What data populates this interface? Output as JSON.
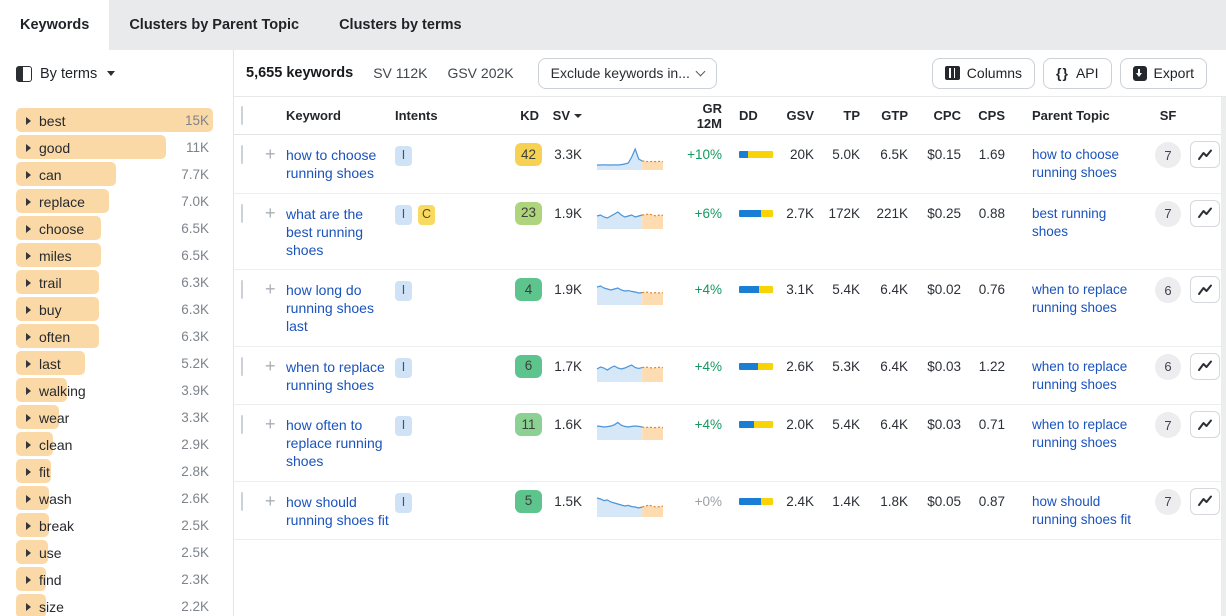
{
  "tabs": [
    {
      "label": "Keywords",
      "active": true
    },
    {
      "label": "Clusters by Parent Topic",
      "active": false
    },
    {
      "label": "Clusters by terms",
      "active": false
    }
  ],
  "sidebar": {
    "view_selector": "By terms",
    "terms": [
      {
        "term": "best",
        "count": "15K",
        "bar_pct": 100
      },
      {
        "term": "good",
        "count": "11K",
        "bar_pct": 76
      },
      {
        "term": "can",
        "count": "7.7K",
        "bar_pct": 51
      },
      {
        "term": "replace",
        "count": "7.0K",
        "bar_pct": 47
      },
      {
        "term": "choose",
        "count": "6.5K",
        "bar_pct": 43
      },
      {
        "term": "miles",
        "count": "6.5K",
        "bar_pct": 43
      },
      {
        "term": "trail",
        "count": "6.3K",
        "bar_pct": 42
      },
      {
        "term": "buy",
        "count": "6.3K",
        "bar_pct": 42
      },
      {
        "term": "often",
        "count": "6.3K",
        "bar_pct": 42
      },
      {
        "term": "last",
        "count": "5.2K",
        "bar_pct": 35
      },
      {
        "term": "walking",
        "count": "3.9K",
        "bar_pct": 26
      },
      {
        "term": "wear",
        "count": "3.3K",
        "bar_pct": 22
      },
      {
        "term": "clean",
        "count": "2.9K",
        "bar_pct": 19
      },
      {
        "term": "fit",
        "count": "2.8K",
        "bar_pct": 18
      },
      {
        "term": "wash",
        "count": "2.6K",
        "bar_pct": 17
      },
      {
        "term": "break",
        "count": "2.5K",
        "bar_pct": 17
      },
      {
        "term": "use",
        "count": "2.5K",
        "bar_pct": 16
      },
      {
        "term": "find",
        "count": "2.3K",
        "bar_pct": 15
      },
      {
        "term": "size",
        "count": "2.2K",
        "bar_pct": 15
      }
    ]
  },
  "toolbar": {
    "keywords_total": "5,655 keywords",
    "sv_total": "SV 112K",
    "gsv_total": "GSV 202K",
    "exclude_dropdown": "Exclude keywords in...",
    "columns_label": "Columns",
    "api_label": "API",
    "api_icon": "{}",
    "export_label": "Export"
  },
  "table": {
    "headers": {
      "keyword": "Keyword",
      "intents": "Intents",
      "kd": "KD",
      "sv": "SV",
      "gr": "GR 12M",
      "dd": "DD",
      "gsv": "GSV",
      "tp": "TP",
      "gtp": "GTP",
      "cpc": "CPC",
      "cps": "CPS",
      "parent": "Parent Topic",
      "sf": "SF"
    },
    "sorted_by": "SV",
    "rows": [
      {
        "keyword": "how to choose running shoes",
        "intents": [
          {
            "label": "I",
            "kind": "info"
          }
        ],
        "kd": "42",
        "kd_color": "#f7d154",
        "sv": "3.3K",
        "gr": "+10%",
        "gr_flat": false,
        "dd": [
          25,
          75
        ],
        "gsv": "20K",
        "tp": "5.0K",
        "gtp": "6.5K",
        "cpc": "$0.15",
        "cps": "1.69",
        "parent": "how to choose running shoes",
        "sf": "7",
        "trend": [
          0.15,
          0.15,
          0.16,
          0.15,
          0.15,
          0.16,
          0.15,
          0.17,
          0.2,
          0.25,
          0.55,
          0.95,
          0.45,
          0.35,
          0.33,
          0.32,
          0.33,
          0.32,
          0.33,
          0.32
        ]
      },
      {
        "keyword": "what are the best running shoes",
        "intents": [
          {
            "label": "I",
            "kind": "info"
          },
          {
            "label": "C",
            "kind": "commercial"
          }
        ],
        "kd": "23",
        "kd_color": "#aed47e",
        "sv": "1.9K",
        "gr": "+6%",
        "gr_flat": false,
        "dd": [
          65,
          35
        ],
        "gsv": "2.7K",
        "tp": "172K",
        "gtp": "221K",
        "cpc": "$0.25",
        "cps": "0.88",
        "parent": "best running shoes",
        "sf": "7",
        "trend": [
          0.55,
          0.6,
          0.5,
          0.45,
          0.55,
          0.65,
          0.75,
          0.6,
          0.5,
          0.55,
          0.6,
          0.5,
          0.55,
          0.6,
          0.62,
          0.65,
          0.6,
          0.55,
          0.6,
          0.58
        ]
      },
      {
        "keyword": "how long do running shoes last",
        "intents": [
          {
            "label": "I",
            "kind": "info"
          }
        ],
        "kd": "4",
        "kd_color": "#5ec48e",
        "sv": "1.9K",
        "gr": "+4%",
        "gr_flat": false,
        "dd": [
          60,
          40
        ],
        "gsv": "3.1K",
        "tp": "5.4K",
        "gtp": "6.4K",
        "cpc": "$0.02",
        "cps": "0.76",
        "parent": "when to replace running shoes",
        "sf": "6",
        "trend": [
          0.8,
          0.85,
          0.75,
          0.7,
          0.65,
          0.7,
          0.75,
          0.65,
          0.6,
          0.62,
          0.58,
          0.55,
          0.5,
          0.52,
          0.55,
          0.52,
          0.5,
          0.52,
          0.5,
          0.52
        ]
      },
      {
        "keyword": "when to replace running shoes",
        "intents": [
          {
            "label": "I",
            "kind": "info"
          }
        ],
        "kd": "6",
        "kd_color": "#5ec48e",
        "sv": "1.7K",
        "gr": "+4%",
        "gr_flat": false,
        "dd": [
          55,
          45
        ],
        "gsv": "2.6K",
        "tp": "5.3K",
        "gtp": "6.4K",
        "cpc": "$0.03",
        "cps": "1.22",
        "parent": "when to replace running shoes",
        "sf": "6",
        "trend": [
          0.55,
          0.65,
          0.6,
          0.5,
          0.62,
          0.7,
          0.6,
          0.55,
          0.6,
          0.68,
          0.75,
          0.62,
          0.58,
          0.62,
          0.65,
          0.62,
          0.6,
          0.62,
          0.64,
          0.62
        ]
      },
      {
        "keyword": "how often to replace running shoes",
        "intents": [
          {
            "label": "I",
            "kind": "info"
          }
        ],
        "kd": "11",
        "kd_color": "#8bd194",
        "sv": "1.6K",
        "gr": "+4%",
        "gr_flat": false,
        "dd": [
          45,
          55
        ],
        "gsv": "2.0K",
        "tp": "5.4K",
        "gtp": "6.4K",
        "cpc": "$0.03",
        "cps": "0.71",
        "parent": "when to replace running shoes",
        "sf": "7",
        "trend": [
          0.6,
          0.58,
          0.55,
          0.57,
          0.6,
          0.66,
          0.78,
          0.64,
          0.58,
          0.55,
          0.58,
          0.6,
          0.58,
          0.55,
          0.52,
          0.55,
          0.52,
          0.52,
          0.54,
          0.52
        ]
      },
      {
        "keyword": "how should running shoes fit",
        "intents": [
          {
            "label": "I",
            "kind": "info"
          }
        ],
        "kd": "5",
        "kd_color": "#5ec48e",
        "sv": "1.5K",
        "gr": "+0%",
        "gr_flat": true,
        "dd": [
          65,
          35
        ],
        "gsv": "2.4K",
        "tp": "1.4K",
        "gtp": "1.8K",
        "cpc": "$0.05",
        "cps": "0.87",
        "parent": "how should running shoes fit",
        "sf": "7",
        "trend": [
          0.85,
          0.8,
          0.72,
          0.75,
          0.65,
          0.6,
          0.55,
          0.5,
          0.45,
          0.48,
          0.42,
          0.4,
          0.35,
          0.4,
          0.45,
          0.5,
          0.44,
          0.4,
          0.42,
          0.44
        ]
      }
    ]
  },
  "icons": {
    "view_toggle": "layout-sidebar-icon",
    "term_expand": "triangle-right-icon",
    "dropdown": "chevron-down-icon",
    "columns": "columns-icon",
    "api": "braces-icon",
    "export": "file-download-icon",
    "sort": "caret-down-icon",
    "row_action": "trend-chart-icon"
  },
  "colors": {
    "term_bar": "#fbd9a6",
    "dd_blue": "#1a7fd4",
    "dd_yellow": "#f8d305",
    "link_blue": "#1a53bd",
    "growth_green": "#149a5e",
    "growth_flat": "#9aa1a8",
    "spark_blue": "#4b94d8",
    "spark_orange": "#e0822e"
  }
}
